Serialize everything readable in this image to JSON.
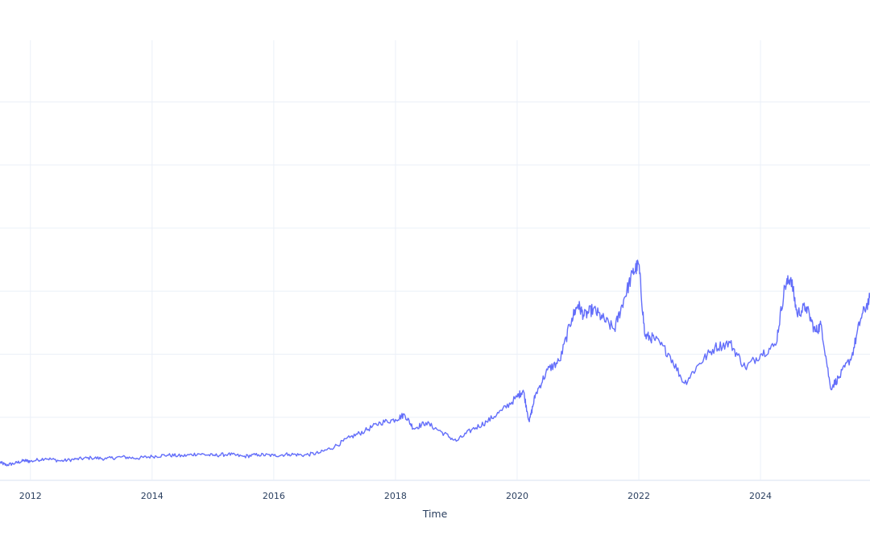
{
  "chart_data": {
    "type": "line",
    "title": "",
    "xlabel": "Time",
    "ylabel": "",
    "x_ticks": [
      2012,
      2014,
      2016,
      2018,
      2020,
      2022,
      2024
    ],
    "xlim": [
      2011.5,
      2025.8
    ],
    "ylim": [
      0,
      100
    ],
    "y_grid": [
      14,
      28,
      42,
      56,
      70,
      84
    ],
    "grid": true,
    "series": [
      {
        "color": "#636efa",
        "x": [
          2011.5,
          2011.6,
          2011.75,
          2011.9,
          2012.0,
          2012.25,
          2012.5,
          2012.75,
          2013.0,
          2013.25,
          2013.5,
          2013.75,
          2014.0,
          2014.25,
          2014.5,
          2014.75,
          2015.0,
          2015.25,
          2015.5,
          2015.75,
          2016.0,
          2016.25,
          2016.5,
          2016.75,
          2017.0,
          2017.25,
          2017.5,
          2017.75,
          2018.0,
          2018.15,
          2018.3,
          2018.5,
          2018.75,
          2019.0,
          2019.25,
          2019.5,
          2019.75,
          2020.0,
          2020.1,
          2020.2,
          2020.3,
          2020.5,
          2020.7,
          2020.9,
          2021.0,
          2021.1,
          2021.25,
          2021.4,
          2021.6,
          2021.75,
          2021.9,
          2022.0,
          2022.1,
          2022.25,
          2022.5,
          2022.75,
          2023.0,
          2023.25,
          2023.5,
          2023.75,
          2024.0,
          2024.25,
          2024.4,
          2024.5,
          2024.6,
          2024.75,
          2024.9,
          2025.0,
          2025.15,
          2025.3,
          2025.5,
          2025.65,
          2025.8
        ],
        "y": [
          4.0,
          3.4,
          3.8,
          4.4,
          4.2,
          4.9,
          4.3,
          4.7,
          5.0,
          4.8,
          5.2,
          4.9,
          5.3,
          5.6,
          5.4,
          5.9,
          5.5,
          5.8,
          5.3,
          5.7,
          5.5,
          5.8,
          5.6,
          6.1,
          7.5,
          9.5,
          11.0,
          12.8,
          13.5,
          14.6,
          11.5,
          12.8,
          10.8,
          8.7,
          11.2,
          13.0,
          15.5,
          18.5,
          20.0,
          13.0,
          19.0,
          24.5,
          26.5,
          36.0,
          39.0,
          36.5,
          38.0,
          36.0,
          33.5,
          40.0,
          46.0,
          48.0,
          32.0,
          31.5,
          28.0,
          21.5,
          26.0,
          29.5,
          30.5,
          25.0,
          28.0,
          30.0,
          43.0,
          45.0,
          37.0,
          38.5,
          33.0,
          34.5,
          20.5,
          23.0,
          27.5,
          36.0,
          40.5
        ]
      }
    ]
  }
}
